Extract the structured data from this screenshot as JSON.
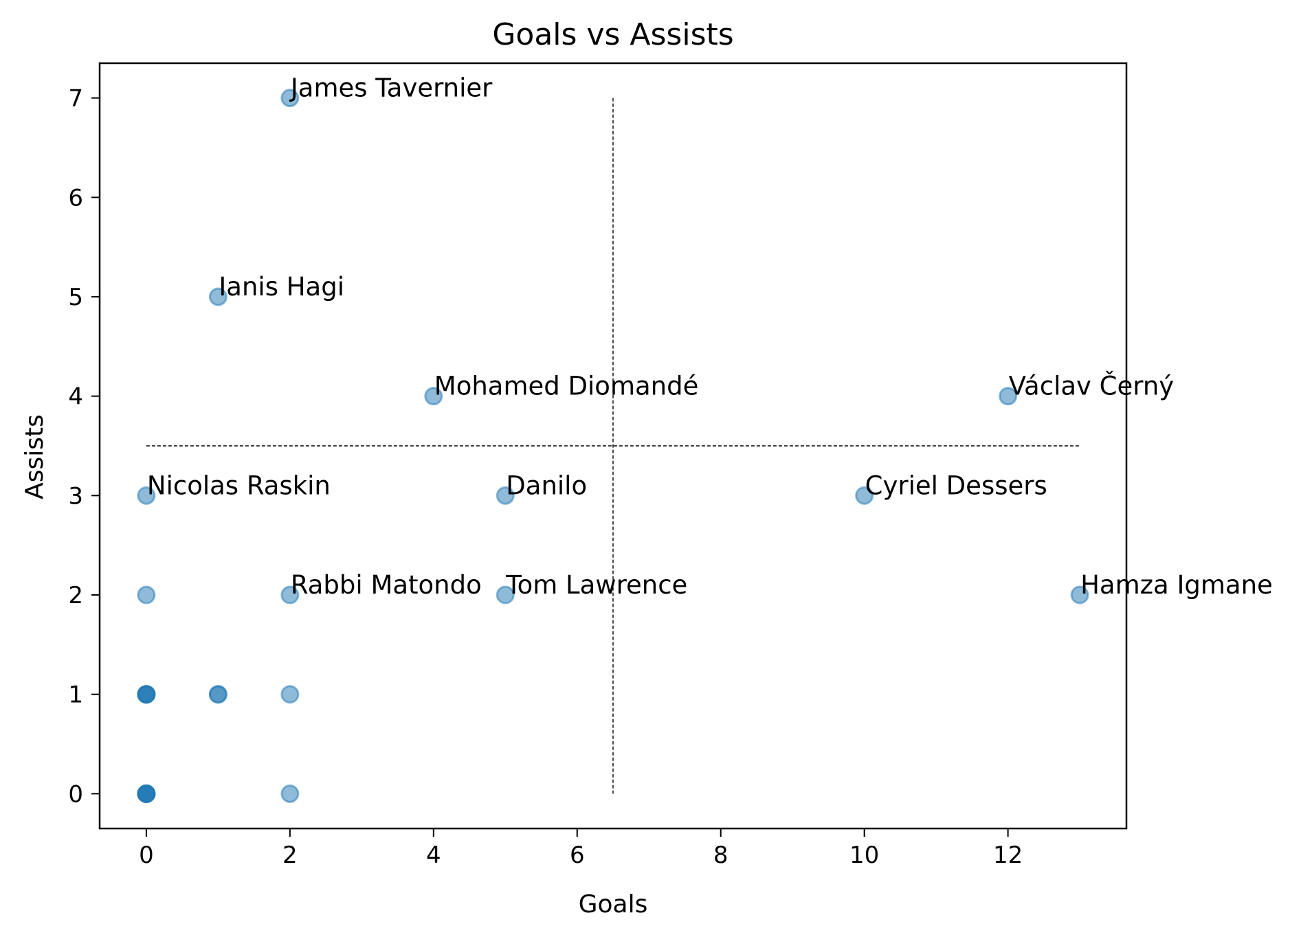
{
  "chart_data": {
    "type": "scatter",
    "title": "Goals vs Assists",
    "xlabel": "Goals",
    "ylabel": "Assists",
    "xlim": [
      -0.65,
      13.65
    ],
    "ylim": [
      -0.35,
      7.35
    ],
    "xticks": [
      "0",
      "2",
      "4",
      "6",
      "8",
      "10",
      "12"
    ],
    "yticks": [
      "0",
      "1",
      "2",
      "3",
      "4",
      "5",
      "6",
      "7"
    ],
    "grid": false,
    "legend": false,
    "marker_color": "#1f77b4",
    "marker_opacity": 0.5,
    "reference_lines": {
      "x": 6.5,
      "y": 3.5
    },
    "labeled_points": [
      {
        "label": "James Tavernier",
        "x": 2,
        "y": 7
      },
      {
        "label": "Ianis Hagi",
        "x": 1,
        "y": 5
      },
      {
        "label": "Mohamed Diomandé",
        "x": 4,
        "y": 4
      },
      {
        "label": "Václav Černý",
        "x": 12,
        "y": 4
      },
      {
        "label": "Nicolas Raskin",
        "x": 0,
        "y": 3
      },
      {
        "label": "Danilo",
        "x": 5,
        "y": 3
      },
      {
        "label": "Cyriel Dessers",
        "x": 10,
        "y": 3
      },
      {
        "label": "Rabbi Matondo",
        "x": 2,
        "y": 2
      },
      {
        "label": "Tom Lawrence",
        "x": 5,
        "y": 2
      },
      {
        "label": "Hamza Igmane",
        "x": 13,
        "y": 2
      }
    ],
    "points": [
      {
        "x": 2,
        "y": 7
      },
      {
        "x": 1,
        "y": 5
      },
      {
        "x": 4,
        "y": 4
      },
      {
        "x": 12,
        "y": 4
      },
      {
        "x": 0,
        "y": 3
      },
      {
        "x": 5,
        "y": 3
      },
      {
        "x": 10,
        "y": 3
      },
      {
        "x": 0,
        "y": 2
      },
      {
        "x": 2,
        "y": 2
      },
      {
        "x": 5,
        "y": 2
      },
      {
        "x": 13,
        "y": 2
      },
      {
        "x": 0,
        "y": 1
      },
      {
        "x": 0,
        "y": 1
      },
      {
        "x": 0,
        "y": 1
      },
      {
        "x": 0,
        "y": 1
      },
      {
        "x": 1,
        "y": 1
      },
      {
        "x": 1,
        "y": 1
      },
      {
        "x": 2,
        "y": 1
      },
      {
        "x": 0,
        "y": 0
      },
      {
        "x": 0,
        "y": 0
      },
      {
        "x": 0,
        "y": 0
      },
      {
        "x": 0,
        "y": 0
      },
      {
        "x": 0,
        "y": 0
      },
      {
        "x": 2,
        "y": 0
      }
    ]
  }
}
